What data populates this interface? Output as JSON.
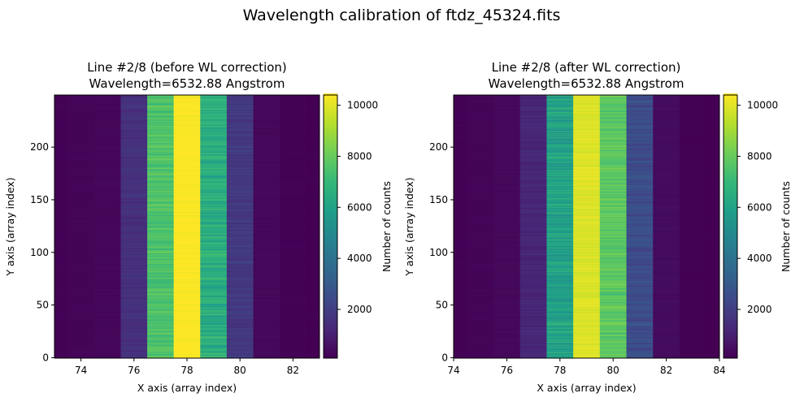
{
  "figure": {
    "title": "Wavelength calibration of ftdz_45324.fits"
  },
  "colormap": "viridis",
  "chart_data": [
    {
      "type": "heatmap",
      "title_line1": "Line #2/8 (before WL correction)",
      "title_line2": "Wavelength=6532.88 Angstrom",
      "xlabel": "X axis (array index)",
      "ylabel": "Y axis (array index)",
      "xlim": [
        73,
        83
      ],
      "ylim": [
        0,
        249
      ],
      "xticks": [
        "74",
        "76",
        "78",
        "80",
        "82"
      ],
      "yticks": [
        "0",
        "50",
        "100",
        "150",
        "200"
      ],
      "columns_x": [
        73,
        74,
        75,
        76,
        77,
        78,
        79,
        80,
        81,
        82,
        83
      ],
      "column_mean_counts": [
        150,
        200,
        250,
        1500,
        7500,
        10400,
        6500,
        1800,
        300,
        150,
        100
      ],
      "rows": 250,
      "colorbar": {
        "label": "Number of counts",
        "vmin": 90,
        "vmax": 10400,
        "ticks": [
          "2000",
          "4000",
          "6000",
          "8000",
          "10000"
        ]
      }
    },
    {
      "type": "heatmap",
      "title_line1": "Line #2/8 (after WL correction)",
      "title_line2": "Wavelength=6532.88 Angstrom",
      "xlabel": "X axis (array index)",
      "ylabel": "Y axis (array index)",
      "xlim": [
        74,
        84
      ],
      "ylim": [
        0,
        249
      ],
      "xticks": [
        "74",
        "76",
        "78",
        "80",
        "82",
        "84"
      ],
      "yticks": [
        "0",
        "50",
        "100",
        "150",
        "200"
      ],
      "columns_x": [
        74,
        75,
        76,
        77,
        78,
        79,
        80,
        81,
        82,
        83,
        84
      ],
      "column_mean_counts": [
        150,
        200,
        300,
        1200,
        6000,
        9900,
        7800,
        2500,
        400,
        120,
        100
      ],
      "rows": 250,
      "colorbar": {
        "label": "Number of counts",
        "vmin": 90,
        "vmax": 10400,
        "ticks": [
          "2000",
          "4000",
          "6000",
          "8000",
          "10000"
        ]
      }
    }
  ]
}
